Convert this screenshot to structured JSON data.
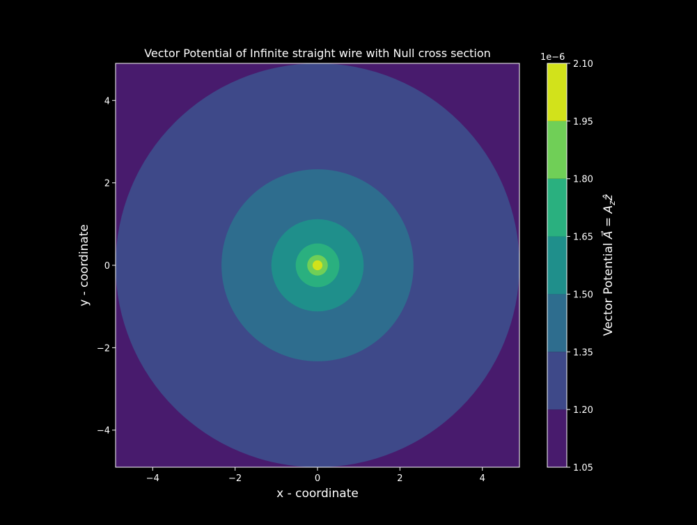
{
  "chart_data": {
    "type": "contourf",
    "title": "Vector Potential of Infinite straight wire with Null cross section",
    "xlabel": "x - coordinate",
    "ylabel": "y - coordinate",
    "xlim": [
      -4.9,
      4.9
    ],
    "ylim": [
      -4.9,
      4.9
    ],
    "x_ticks": [
      -4,
      -2,
      0,
      2,
      4
    ],
    "y_ticks": [
      -4,
      -2,
      0,
      2,
      4
    ],
    "x_tick_labels": [
      "−4",
      "−2",
      "0",
      "2",
      "4"
    ],
    "y_tick_labels": [
      "−4",
      "−2",
      "0",
      "2",
      "4"
    ],
    "grid": false,
    "center": [
      0,
      0
    ],
    "contour_levels": [
      1.05,
      1.2,
      1.35,
      1.5,
      1.65,
      1.8,
      1.95,
      2.1
    ],
    "level_multiplier_label": "1e−6",
    "band_outer_radii": [
      null,
      4.9,
      2.33,
      1.12,
      0.53,
      0.25,
      0.12
    ],
    "band_colors": [
      "#481b6d",
      "#3e4989",
      "#2e6d8e",
      "#1f8f8b",
      "#2ab07f",
      "#70cf57",
      "#d2e21b"
    ],
    "colorbar": {
      "label": "Vector Potential A⃗ = A_z ẑ",
      "tick_labels": [
        "1.05",
        "1.20",
        "1.35",
        "1.50",
        "1.65",
        "1.80",
        "1.95",
        "2.10"
      ]
    }
  }
}
